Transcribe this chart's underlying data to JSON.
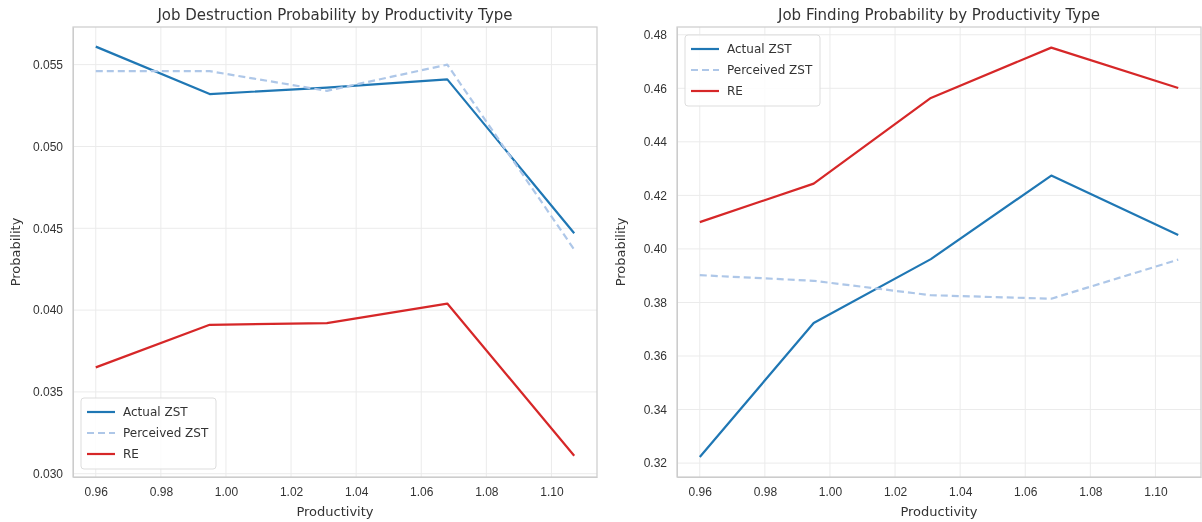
{
  "chart_data": [
    {
      "type": "line",
      "title": "Job Destruction Probability by Productivity Type",
      "xlabel": "Productivity",
      "ylabel": "Probability",
      "x": [
        0.96,
        0.995,
        1.031,
        1.068,
        1.107
      ],
      "series": [
        {
          "name": "Actual ZST",
          "color": "#1f77b4",
          "line_style": "solid",
          "values": [
            0.0561,
            0.0532,
            0.0536,
            0.0541,
            0.0447
          ]
        },
        {
          "name": "Perceived ZST",
          "color": "#aec7e8",
          "line_style": "dashed",
          "values": [
            0.0546,
            0.0546,
            0.0534,
            0.055,
            0.0437
          ]
        },
        {
          "name": "RE",
          "color": "#d62728",
          "line_style": "solid",
          "values": [
            0.0365,
            0.0391,
            0.0392,
            0.0404,
            0.0311
          ]
        }
      ],
      "xlim": [
        0.953,
        1.114
      ],
      "ylim": [
        0.0298,
        0.0573
      ],
      "xticks": [
        {
          "value": 0.96,
          "label": "0.96"
        },
        {
          "value": 0.98,
          "label": "0.98"
        },
        {
          "value": 1.0,
          "label": "1.00"
        },
        {
          "value": 1.02,
          "label": "1.02"
        },
        {
          "value": 1.04,
          "label": "1.04"
        },
        {
          "value": 1.06,
          "label": "1.06"
        },
        {
          "value": 1.08,
          "label": "1.08"
        },
        {
          "value": 1.1,
          "label": "1.10"
        }
      ],
      "yticks": [
        {
          "value": 0.03,
          "label": "0.030"
        },
        {
          "value": 0.035,
          "label": "0.035"
        },
        {
          "value": 0.04,
          "label": "0.040"
        },
        {
          "value": 0.045,
          "label": "0.045"
        },
        {
          "value": 0.05,
          "label": "0.050"
        },
        {
          "value": 0.055,
          "label": "0.055"
        }
      ],
      "grid": true,
      "legend": "bottom left"
    },
    {
      "type": "line",
      "title": "Job Finding Probability by Productivity Type",
      "xlabel": "Productivity",
      "ylabel": "Probability",
      "x": [
        0.96,
        0.995,
        1.031,
        1.068,
        1.107
      ],
      "series": [
        {
          "name": "Actual ZST",
          "color": "#1f77b4",
          "line_style": "solid",
          "values": [
            0.3223,
            0.3723,
            0.3962,
            0.4274,
            0.4052
          ]
        },
        {
          "name": "Perceived ZST",
          "color": "#aec7e8",
          "line_style": "dashed",
          "values": [
            0.3902,
            0.3881,
            0.3827,
            0.3814,
            0.396
          ]
        },
        {
          "name": "RE",
          "color": "#d62728",
          "line_style": "solid",
          "values": [
            0.41,
            0.4244,
            0.4564,
            0.4752,
            0.4601
          ]
        }
      ],
      "xlim": [
        0.953,
        1.114
      ],
      "ylim": [
        0.3148,
        0.4829
      ],
      "xticks": [
        {
          "value": 0.96,
          "label": "0.96"
        },
        {
          "value": 0.98,
          "label": "0.98"
        },
        {
          "value": 1.0,
          "label": "1.00"
        },
        {
          "value": 1.02,
          "label": "1.02"
        },
        {
          "value": 1.04,
          "label": "1.04"
        },
        {
          "value": 1.06,
          "label": "1.06"
        },
        {
          "value": 1.08,
          "label": "1.08"
        },
        {
          "value": 1.1,
          "label": "1.10"
        }
      ],
      "yticks": [
        {
          "value": 0.32,
          "label": "0.32"
        },
        {
          "value": 0.34,
          "label": "0.34"
        },
        {
          "value": 0.36,
          "label": "0.36"
        },
        {
          "value": 0.38,
          "label": "0.38"
        },
        {
          "value": 0.4,
          "label": "0.40"
        },
        {
          "value": 0.42,
          "label": "0.42"
        },
        {
          "value": 0.44,
          "label": "0.44"
        },
        {
          "value": 0.46,
          "label": "0.46"
        },
        {
          "value": 0.48,
          "label": "0.48"
        }
      ],
      "grid": true,
      "legend": "top left"
    }
  ]
}
